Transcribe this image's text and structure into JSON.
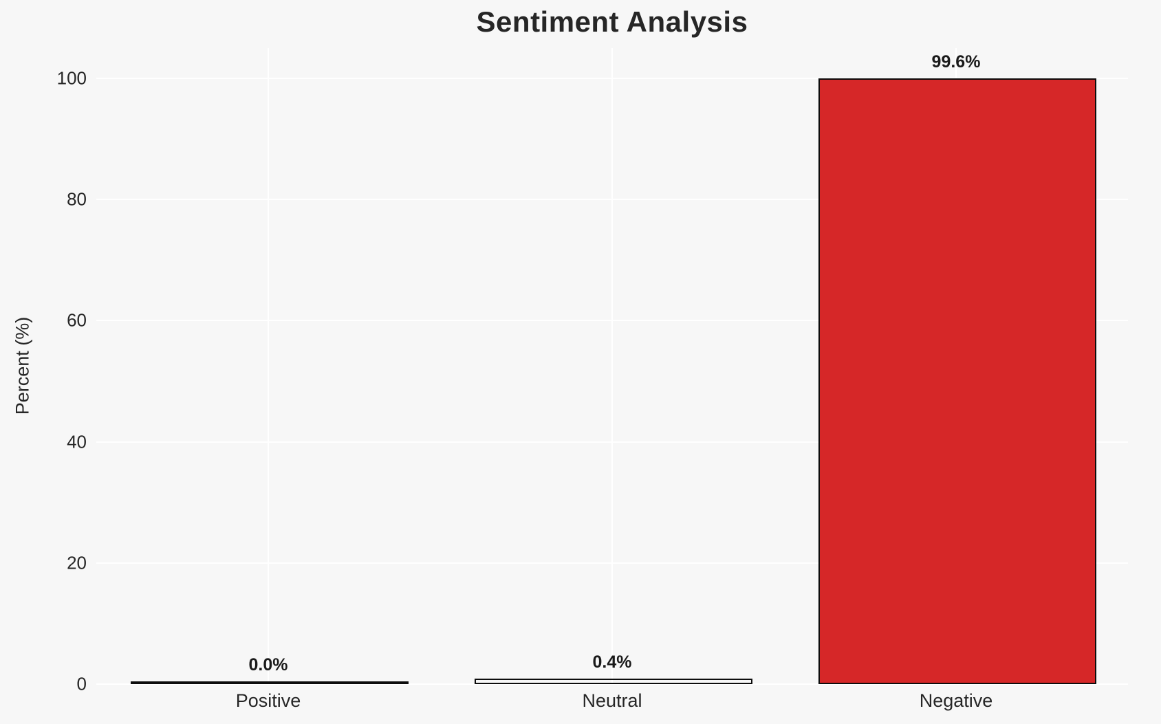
{
  "chart_data": {
    "type": "bar",
    "title": "Sentiment Analysis",
    "xlabel": "",
    "ylabel": "Percent (%)",
    "categories": [
      "Positive",
      "Neutral",
      "Negative"
    ],
    "values": [
      0.0,
      0.4,
      99.6
    ],
    "value_labels": [
      "0.0%",
      "0.4%",
      "99.6%"
    ],
    "yticks": [
      0,
      20,
      40,
      60,
      80,
      100
    ],
    "ylim": [
      0,
      105
    ],
    "grid": true,
    "legend": null,
    "colors": {
      "bar_fills": [
        null,
        null,
        "#d62728"
      ],
      "bar_edge": "#0d0d0d",
      "background": "#f7f7f7",
      "gridline": "#ffffff",
      "text": "#262626"
    }
  }
}
